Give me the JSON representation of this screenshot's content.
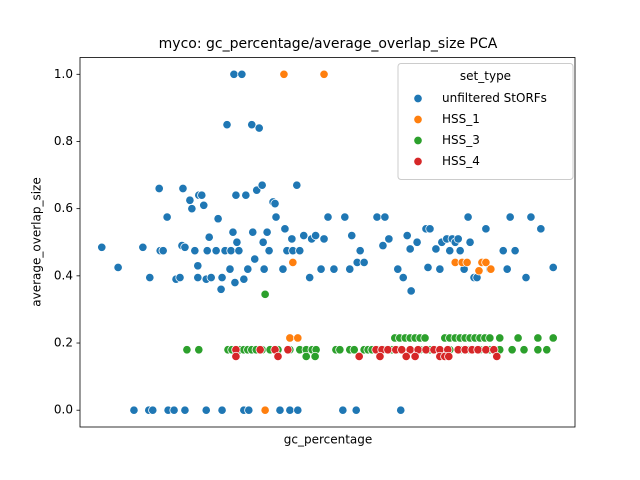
{
  "chart_data": {
    "type": "scatter",
    "title": "myco: gc_percentage/average_overlap_size PCA",
    "x_label": "gc_percentage",
    "y_label": "average_overlap_size",
    "legend_title": "set_type",
    "legend_position": "upper right",
    "xlim": [
      0,
      100
    ],
    "ylim": [
      -0.05,
      1.05
    ],
    "yticks": [
      {
        "value": 0,
        "label": "0.0"
      },
      0.2,
      0.4,
      0.6,
      0.8,
      {
        "value": 1,
        "label": "1.0"
      }
    ],
    "series": [
      {
        "name": "unfiltered StORFs",
        "color": "#1f77b4",
        "x": [
          4.4,
          7.7,
          10.9,
          12.7,
          14.1,
          13.9,
          14.7,
          16,
          16.2,
          16.8,
          17.6,
          17.8,
          19,
          19.4,
          20.2,
          20.8,
          20.6,
          21.2,
          21.2,
          22.2,
          22.6,
          23.2,
          23.8,
          23.8,
          24,
          24.6,
          25,
          25.5,
          25.7,
          25.5,
          26.1,
          26.5,
          27.5,
          27.9,
          28.7,
          28.5,
          28.7,
          29.3,
          29.7,
          30.3,
          30.5,
          30.9,
          31.1,
          31.5,
          31.3,
          31.7,
          32.1,
          32.7,
          33.1,
          33.1,
          33.5,
          33.9,
          34.1,
          34.7,
          34.9,
          35.3,
          35.7,
          36.2,
          36.8,
          37,
          37.2,
          37.8,
          38.2,
          39,
          39.4,
          39.6,
          40.4,
          41,
          41.4,
          41.8,
          42.4,
          42.8,
          43,
          43.8,
          44,
          44.4,
          45.2,
          46.4,
          46.8,
          47.6,
          48.7,
          49.3,
          50.1,
          51.3,
          53.1,
          53.5,
          54.5,
          54.9,
          55.8,
          56,
          56.6,
          57.4,
          60,
          61.2,
          61.6,
          62.4,
          64.2,
          64.8,
          65.3,
          66.1,
          66.7,
          66.9,
          68.1,
          69.9,
          70.3,
          70.7,
          71.9,
          72.7,
          73.1,
          74.1,
          74.7,
          75.2,
          75.8,
          76.4,
          76.8,
          77.2,
          77.6,
          78.4,
          78.8,
          79.6,
          80.2,
          81.2,
          82,
          82.8,
          85.5,
          86.3,
          86.9,
          87.9,
          90.1,
          91.1,
          93.1,
          95.6
        ],
        "y": [
          0.485,
          0.425,
          0,
          0.485,
          0.395,
          0,
          0,
          0.66,
          0.475,
          0.475,
          0.575,
          0,
          0,
          0.39,
          0.395,
          0.66,
          0.49,
          0.485,
          0,
          0.625,
          0.6,
          0.475,
          0.43,
          0.395,
          0.64,
          0.64,
          0.61,
          0,
          0.475,
          0.39,
          0.515,
          0.395,
          0.475,
          0.57,
          0,
          0.36,
          0.395,
          0.475,
          0.85,
          0.42,
          0.475,
          0.53,
          1.0,
          0.64,
          0.38,
          0.5,
          0.475,
          1.0,
          0.39,
          0,
          0.64,
          0.42,
          0,
          0.85,
          0.53,
          0.45,
          0.655,
          0.84,
          0.67,
          0.5,
          0.42,
          0.53,
          0.475,
          0.62,
          0.615,
          0.575,
          0,
          0.42,
          0.54,
          0.475,
          0,
          0.51,
          0.475,
          0.67,
          0,
          0.475,
          0.52,
          0.395,
          0.51,
          0.52,
          0.42,
          0.51,
          0.575,
          0.42,
          0,
          0.575,
          0.42,
          0.52,
          0,
          0.44,
          0.475,
          0.44,
          0.575,
          0.49,
          0.575,
          0.51,
          0.42,
          0,
          0.395,
          0.52,
          0.48,
          0.355,
          0.5,
          0.54,
          0.425,
          0.54,
          0.48,
          0.42,
          0.5,
          0.51,
          0.475,
          0.51,
          0.5,
          0.51,
          0.475,
          0.44,
          0.42,
          0.575,
          0.5,
          0.395,
          0.395,
          0.44,
          0.54,
          0.42,
          0.475,
          0.42,
          0.575,
          0.475,
          0.395,
          0.575,
          0.54,
          0.425
        ]
      },
      {
        "name": "HSS_1",
        "color": "#ff7f0e",
        "x": [
          41.2,
          49.3,
          37.4,
          43,
          42.4,
          44,
          42.4,
          75.8,
          77.2,
          78.2,
          81.2,
          82,
          83,
          80.6
        ],
        "y": [
          1.0,
          1.0,
          0,
          0.44,
          0.215,
          0.215,
          0.18,
          0.44,
          0.44,
          0.44,
          0.44,
          0.44,
          0.42,
          0.415
        ]
      },
      {
        "name": "HSS_3",
        "color": "#2ca02c",
        "x": [
          37.4,
          21.6,
          24,
          29.9,
          30.7,
          31.5,
          32.3,
          33.1,
          33.9,
          34.7,
          35.6,
          36.8,
          38.4,
          40,
          42.4,
          44.4,
          45.7,
          46.9,
          47.7,
          51.7,
          52.5,
          54.5,
          55.4,
          57.4,
          58.2,
          59,
          60.2,
          61.4,
          63,
          64.6,
          66.7,
          68.7,
          70.7,
          72.7,
          74.7,
          76.8,
          78.8,
          80.8,
          82.8,
          84.8,
          87.3,
          89.7,
          92.5,
          94.3,
          63.6,
          64.6,
          65.7,
          66.7,
          67.7,
          68.7,
          69.7,
          73.7,
          74.7,
          75.8,
          76.8,
          77.8,
          78.8,
          79.8,
          80.8,
          81.8,
          82.8,
          84.8,
          88.5,
          92.5,
          95.6,
          45.7,
          47.5
        ],
        "y": [
          0.345,
          0.18,
          0.18,
          0.18,
          0.18,
          0.18,
          0.18,
          0.18,
          0.18,
          0.18,
          0.18,
          0.18,
          0.18,
          0.18,
          0.18,
          0.18,
          0.18,
          0.18,
          0.18,
          0.18,
          0.18,
          0.18,
          0.18,
          0.18,
          0.18,
          0.18,
          0.18,
          0.18,
          0.18,
          0.18,
          0.18,
          0.18,
          0.18,
          0.18,
          0.18,
          0.18,
          0.18,
          0.18,
          0.18,
          0.18,
          0.18,
          0.18,
          0.18,
          0.18,
          0.215,
          0.215,
          0.215,
          0.215,
          0.215,
          0.215,
          0.215,
          0.215,
          0.215,
          0.215,
          0.215,
          0.215,
          0.215,
          0.215,
          0.215,
          0.215,
          0.215,
          0.215,
          0.215,
          0.215,
          0.215,
          0.16,
          0.16
        ]
      },
      {
        "name": "HSS_4",
        "color": "#d62728",
        "x": [
          31.5,
          36.4,
          39.4,
          42,
          59.8,
          61,
          62.2,
          63.8,
          65,
          66.7,
          68.3,
          69.9,
          71.5,
          72.7,
          74.3,
          76.4,
          77.8,
          79.2,
          80.4,
          82,
          83.6,
          31.5,
          40,
          56.4,
          60.6,
          65.9,
          67.7,
          72.7,
          73.7,
          74.5,
          84.2
        ],
        "y": [
          0.18,
          0.18,
          0.18,
          0.18,
          0.18,
          0.18,
          0.18,
          0.18,
          0.18,
          0.18,
          0.18,
          0.18,
          0.18,
          0.18,
          0.18,
          0.18,
          0.18,
          0.18,
          0.18,
          0.18,
          0.18,
          0.16,
          0.16,
          0.16,
          0.16,
          0.16,
          0.16,
          0.16,
          0.16,
          0.16,
          0.16
        ]
      }
    ]
  }
}
